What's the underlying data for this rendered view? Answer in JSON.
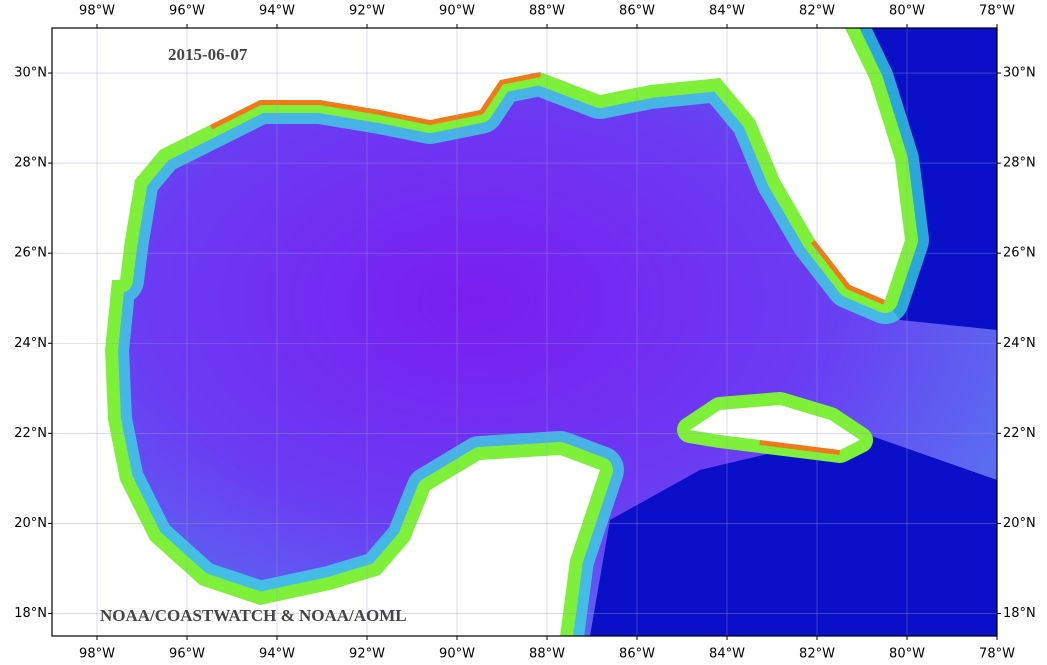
{
  "map": {
    "date": "2015-06-07",
    "credit": "NOAA/COASTWATCH & NOAA/AOML",
    "lon_range": [
      -99,
      -78
    ],
    "lat_range": [
      17.5,
      31
    ],
    "lon_ticks": [
      {
        "value": -98,
        "label": "98°W"
      },
      {
        "value": -96,
        "label": "96°W"
      },
      {
        "value": -94,
        "label": "94°W"
      },
      {
        "value": -92,
        "label": "92°W"
      },
      {
        "value": -90,
        "label": "90°W"
      },
      {
        "value": -88,
        "label": "88°W"
      },
      {
        "value": -86,
        "label": "86°W"
      },
      {
        "value": -84,
        "label": "84°W"
      },
      {
        "value": -82,
        "label": "82°W"
      },
      {
        "value": -80,
        "label": "80°W"
      },
      {
        "value": -78,
        "label": "78°W"
      }
    ],
    "lat_ticks": [
      {
        "value": 18,
        "label": "18°N"
      },
      {
        "value": 20,
        "label": "20°N"
      },
      {
        "value": 22,
        "label": "22°N"
      },
      {
        "value": 24,
        "label": "24°N"
      },
      {
        "value": 26,
        "label": "26°N"
      },
      {
        "value": 28,
        "label": "28°N"
      },
      {
        "value": 30,
        "label": "30°N"
      }
    ]
  }
}
